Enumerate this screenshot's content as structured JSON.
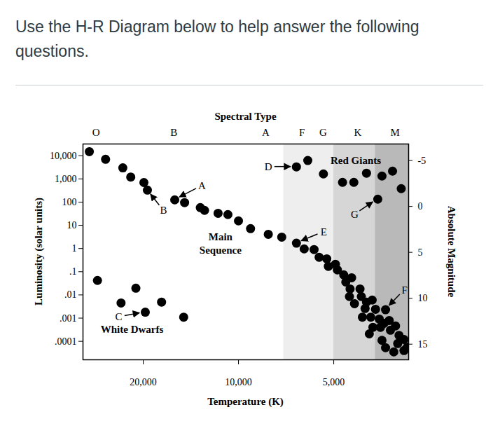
{
  "heading": "Use the H-R Diagram below to help answer the following questions.",
  "chart_data": {
    "type": "scatter",
    "x_label": "Temperature (K)",
    "y_label": "Luminosity (solar units)",
    "y2_label": "Absolute Magnitude",
    "top_axis": {
      "label": "Spectral Type",
      "ticks": [
        {
          "value": 28200,
          "label": "O"
        },
        {
          "value": 16000,
          "label": "B"
        },
        {
          "value": 8200,
          "label": "A"
        },
        {
          "value": 6300,
          "label": "F"
        },
        {
          "value": 5400,
          "label": "G"
        },
        {
          "value": 4200,
          "label": "K"
        },
        {
          "value": 3200,
          "label": "M"
        }
      ]
    },
    "log": true,
    "grid": false,
    "xlim": [
      31000,
      2900
    ],
    "xticks": [
      {
        "value": 20000,
        "label": "20,000"
      },
      {
        "value": 10000,
        "label": "10,000"
      },
      {
        "value": 5000,
        "label": "5,000"
      }
    ],
    "ylim": [
      1.6e-05,
      32000
    ],
    "yticks": [
      {
        "value": 10000,
        "label": "10,000"
      },
      {
        "value": 1000,
        "label": "1,000"
      },
      100,
      10,
      1,
      {
        "value": 0.1,
        "label": ".1"
      },
      {
        "value": 0.01,
        "label": ".01"
      },
      {
        "value": 0.001,
        "label": ".001"
      },
      {
        "value": 0.0001,
        "label": ".0001"
      }
    ],
    "y2lim": [
      16.7,
      -6.8
    ],
    "y2ticks": [
      -5,
      0,
      5,
      10,
      15
    ],
    "color": "#000000",
    "marker": "circle",
    "x": [
      29600,
      26300,
      23200,
      21900,
      19900,
      19400,
      15900,
      14800,
      13200,
      12800,
      11600,
      10800,
      10000,
      9160,
      8050,
      7300,
      6560,
      6200,
      5770,
      5560,
      5260,
      5200,
      4940,
      4870,
      4650,
      4580,
      4390,
      4440,
      4460,
      4300,
      4130,
      4090,
      3980,
      3940,
      3780,
      3690,
      3820,
      4060,
      3590,
      3430,
      3470,
      3340,
      3860,
      3760,
      3560,
      3190,
      3310,
      3110,
      3140,
      3000,
      2930,
      3430,
      3230,
      3000,
      3520,
      6560,
      6040,
      5390,
      4690,
      4320,
      3940,
      3520,
      3260,
      3060,
      3630,
      27900,
      23500,
      21100,
      19700,
      17500,
      14900
    ],
    "values": [
      15000,
      7000,
      3000,
      1200,
      700,
      330,
      125,
      95,
      58,
      44,
      33,
      29,
      15.5,
      7.2,
      4.1,
      3.1,
      1.7,
      0.96,
      0.9,
      0.42,
      0.36,
      0.17,
      0.21,
      0.12,
      0.073,
      0.036,
      0.055,
      0.018,
      0.0085,
      0.0042,
      0.018,
      0.0085,
      0.0026,
      0.0049,
      0.006,
      0.0024,
      0.0011,
      0.0011,
      0.00091,
      0.0023,
      0.0006,
      0.00079,
      0.00021,
      0.0004,
      0.0004,
      0.00046,
      0.0003,
      0.00018,
      8e-05,
      0.00012,
      5.6e-05,
      5.3e-05,
      3.5e-05,
      4e-05,
      0.00011,
      3300,
      6200,
      1640,
      710,
      710,
      1760,
      1330,
      2160,
      380,
      134,
      0.042,
      0.0045,
      0.0195,
      0.0018,
      0.0049,
      0.0011
    ],
    "shaded_bands": [
      {
        "from": 7200,
        "to": 5000,
        "color": "#eeeeee"
      },
      {
        "from": 5000,
        "to": 3700,
        "color": "#d6d6d6"
      },
      {
        "from": 3700,
        "to": 2900,
        "color": "#b9b9b9"
      }
    ],
    "region_labels": [
      {
        "text": "Red Giants",
        "x": 4260,
        "y": 6600
      },
      {
        "text": "Main\nSequence",
        "x": 11400,
        "y": 1.8
      },
      {
        "text": "White Dwarfs",
        "x": 21700,
        "y": 0.00035
      }
    ],
    "point_labels": [
      {
        "text": "A",
        "x": 15900,
        "y": 125
      },
      {
        "text": "B",
        "x": 19400,
        "y": 330
      },
      {
        "text": "C",
        "x": 19700,
        "y": 0.0018
      },
      {
        "text": "D",
        "x": 6560,
        "y": 3300
      },
      {
        "text": "E",
        "x": 6560,
        "y": 1.7
      },
      {
        "text": "F",
        "x": 3430,
        "y": 0.0023
      },
      {
        "text": "G",
        "x": 3630,
        "y": 134
      }
    ]
  }
}
